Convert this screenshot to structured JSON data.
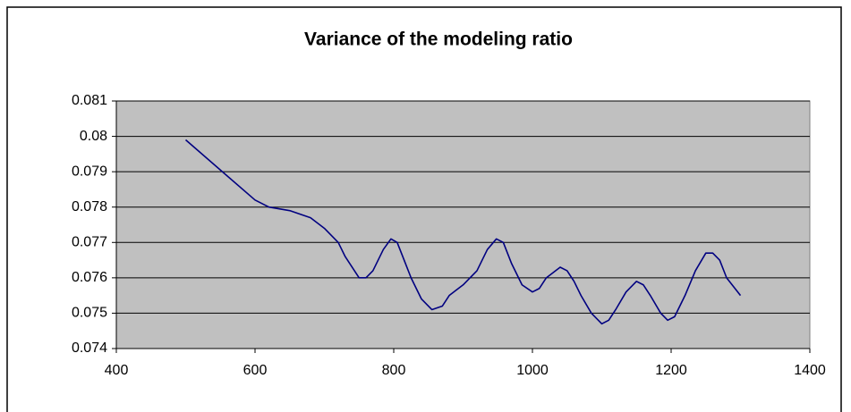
{
  "chart_data": {
    "type": "line",
    "title": "Variance of the modeling ratio",
    "x": [
      500,
      600,
      620,
      650,
      680,
      700,
      720,
      730,
      750,
      760,
      770,
      785,
      796,
      805,
      815,
      825,
      840,
      855,
      870,
      880,
      900,
      920,
      935,
      948,
      958,
      970,
      985,
      1000,
      1010,
      1020,
      1040,
      1050,
      1060,
      1070,
      1085,
      1100,
      1110,
      1120,
      1135,
      1150,
      1160,
      1170,
      1185,
      1195,
      1205,
      1220,
      1235,
      1250,
      1260,
      1270,
      1280,
      1300
    ],
    "series": [
      {
        "name": "Variance",
        "color": "#000080",
        "values": [
          0.0799,
          0.0782,
          0.078,
          0.0779,
          0.0777,
          0.0774,
          0.077,
          0.0766,
          0.076,
          0.076,
          0.0762,
          0.0768,
          0.0771,
          0.077,
          0.0765,
          0.076,
          0.0754,
          0.0751,
          0.0752,
          0.0755,
          0.0758,
          0.0762,
          0.0768,
          0.0771,
          0.077,
          0.0764,
          0.0758,
          0.0756,
          0.0757,
          0.076,
          0.0763,
          0.0762,
          0.0759,
          0.0755,
          0.075,
          0.0747,
          0.0748,
          0.0751,
          0.0756,
          0.0759,
          0.0758,
          0.0755,
          0.075,
          0.0748,
          0.0749,
          0.0755,
          0.0762,
          0.0767,
          0.0767,
          0.0765,
          0.076,
          0.0755
        ]
      }
    ],
    "xlim": [
      400,
      1400
    ],
    "xticks": [
      400,
      600,
      800,
      1000,
      1200,
      1400
    ],
    "ylim": [
      0.074,
      0.081
    ],
    "yticks": [
      0.074,
      0.075,
      0.076,
      0.077,
      0.078,
      0.079,
      0.08,
      0.081
    ],
    "grid": true,
    "plot_background": "#c0c0c0"
  }
}
